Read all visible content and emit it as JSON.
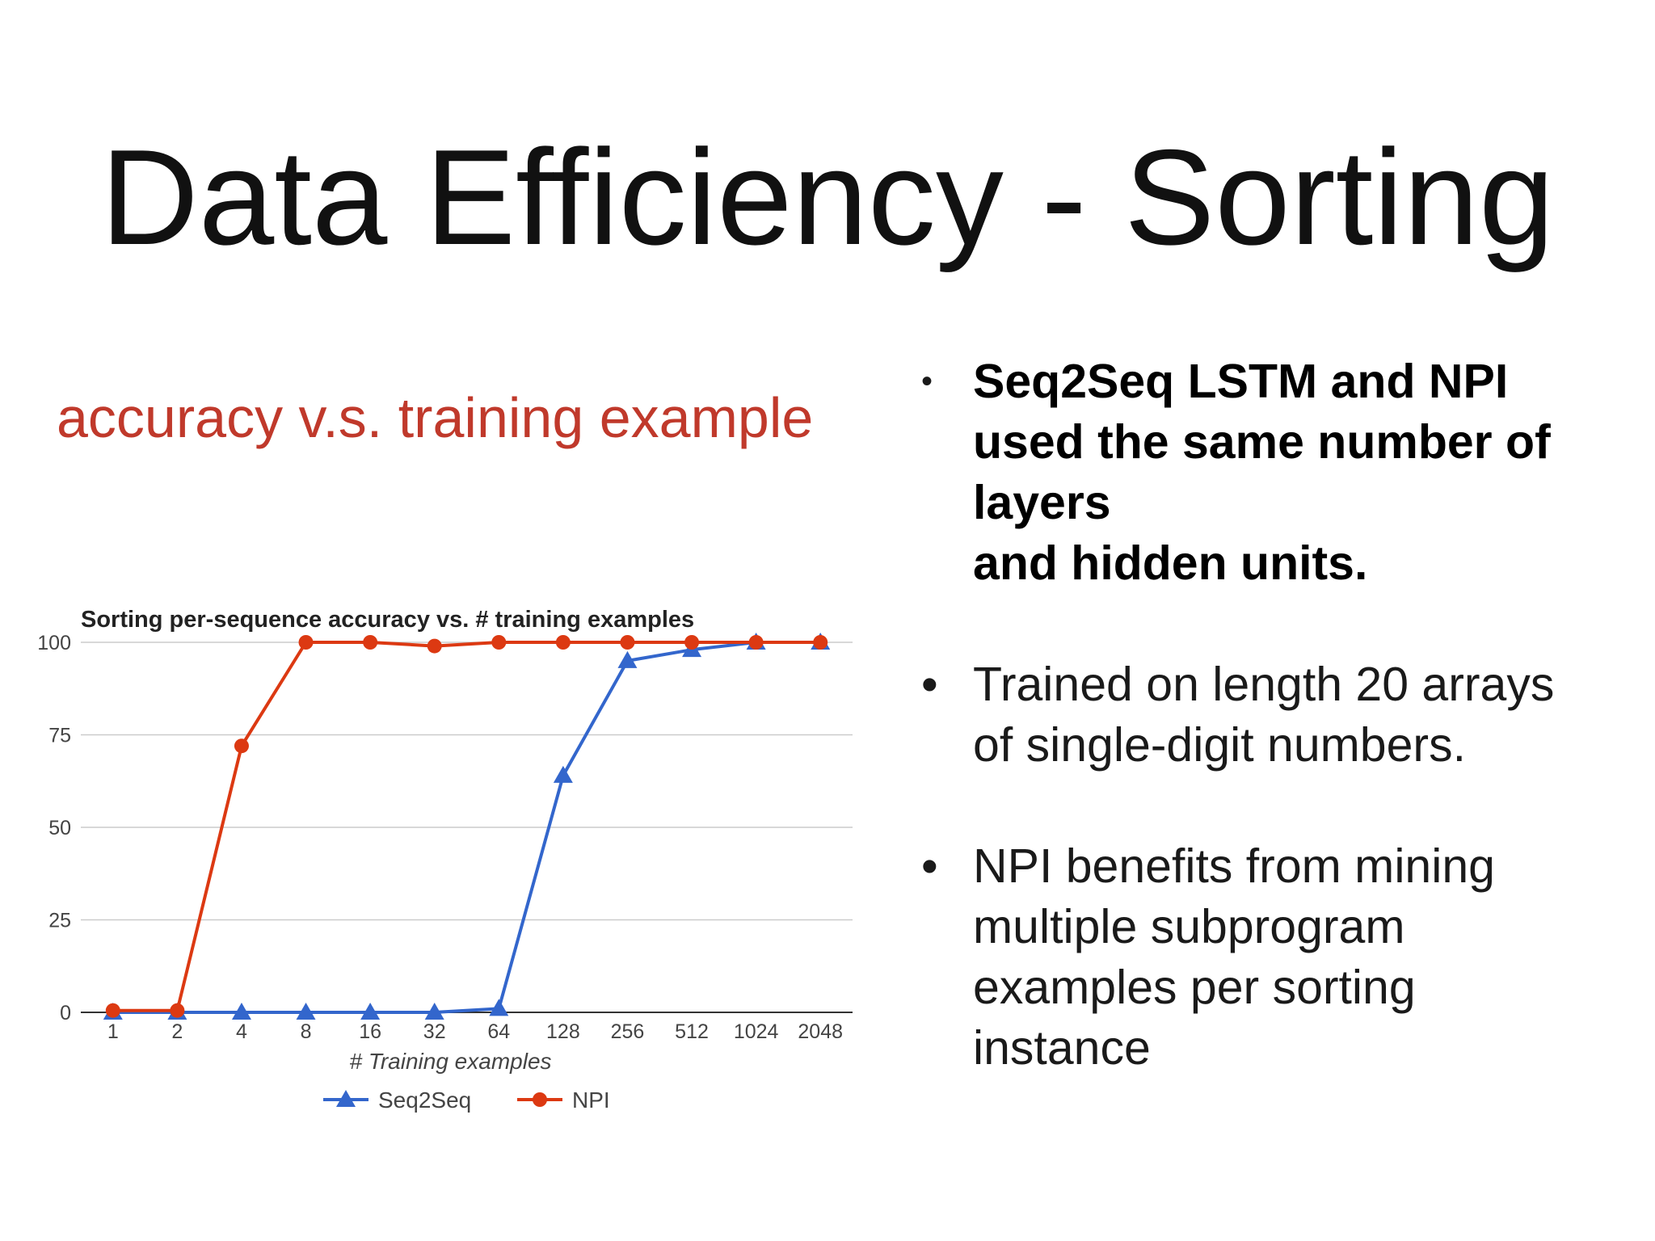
{
  "slide": {
    "title": "Data Efficiency - Sorting",
    "subtitle": "accuracy v.s. training example",
    "subtitle_color": "#c0392b"
  },
  "bullets": [
    {
      "lines": [
        "Seq2Seq LSTM and NPI",
        "used the same number of",
        "layers",
        "and hidden units."
      ],
      "bold": true
    },
    {
      "lines": [
        "Trained on length 20 arrays",
        "of single-digit numbers."
      ],
      "bold": false
    },
    {
      "lines": [
        "NPI benefits from mining",
        "multiple subprogram",
        "examples per sorting",
        "instance"
      ],
      "bold": false
    }
  ],
  "chart_data": {
    "type": "line",
    "title": "Sorting per-sequence accuracy vs. # training examples",
    "xlabel": "# Training examples",
    "ylabel": "",
    "categories": [
      "1",
      "2",
      "4",
      "8",
      "16",
      "32",
      "64",
      "128",
      "256",
      "512",
      "1024",
      "2048"
    ],
    "ylim": [
      0,
      100
    ],
    "yticks": [
      0,
      25,
      50,
      75,
      100
    ],
    "grid": true,
    "legend": "bottom",
    "series": [
      {
        "name": "Seq2Seq",
        "color": "#3366cc",
        "marker": "triangle",
        "values": [
          0,
          0,
          0,
          0,
          0,
          0,
          1,
          64,
          95,
          98,
          100,
          100
        ]
      },
      {
        "name": "NPI",
        "color": "#dc3912",
        "marker": "circle",
        "values": [
          0.5,
          0.5,
          72,
          100,
          100,
          99,
          100,
          100,
          100,
          100,
          100,
          100
        ]
      }
    ]
  }
}
